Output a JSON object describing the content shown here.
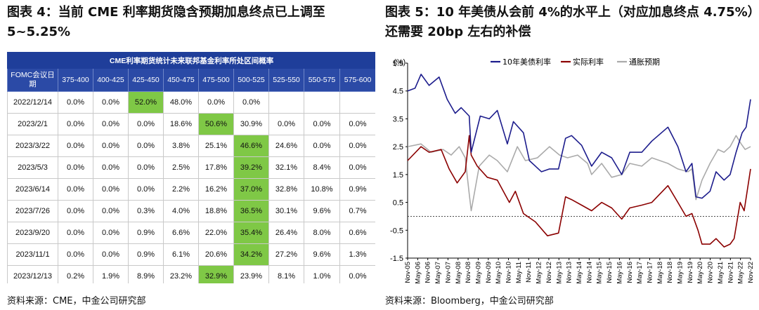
{
  "figure4": {
    "title": "图表 4：当前 CME 利率期货隐含预期加息终点已上调至 5~5.25%",
    "source": "资料来源：CME，中金公司研究部",
    "table": {
      "caption": "CME利率期货统计未来联邦基金利率所处区间概率",
      "columns": [
        "FOMC会议日期",
        "375-400",
        "400-425",
        "425-450",
        "450-475",
        "475-500",
        "500-525",
        "525-550",
        "550-575",
        "575-600"
      ],
      "rows": [
        {
          "date": "2022/12/14",
          "values": [
            "0.0%",
            "0.0%",
            "52.0%",
            "48.0%",
            "0.0%",
            "0.0%",
            "",
            "",
            ""
          ],
          "highlight": 2
        },
        {
          "date": "2023/2/1",
          "values": [
            "0.0%",
            "0.0%",
            "0.0%",
            "18.6%",
            "50.6%",
            "30.9%",
            "0.0%",
            "0.0%",
            "0.0%"
          ],
          "highlight": 4
        },
        {
          "date": "2023/3/22",
          "values": [
            "0.0%",
            "0.0%",
            "0.0%",
            "3.8%",
            "25.1%",
            "46.6%",
            "24.6%",
            "0.0%",
            "0.0%"
          ],
          "highlight": 5
        },
        {
          "date": "2023/5/3",
          "values": [
            "0.0%",
            "0.0%",
            "0.0%",
            "2.5%",
            "17.8%",
            "39.2%",
            "32.1%",
            "8.4%",
            "0.0%"
          ],
          "highlight": 5
        },
        {
          "date": "2023/6/14",
          "values": [
            "0.0%",
            "0.0%",
            "0.0%",
            "2.2%",
            "16.2%",
            "37.0%",
            "32.8%",
            "10.8%",
            "0.9%"
          ],
          "highlight": 5
        },
        {
          "date": "2023/7/26",
          "values": [
            "0.0%",
            "0.0%",
            "0.3%",
            "4.0%",
            "18.8%",
            "36.5%",
            "30.1%",
            "9.6%",
            "0.7%"
          ],
          "highlight": 5
        },
        {
          "date": "2023/9/20",
          "values": [
            "0.0%",
            "0.0%",
            "0.9%",
            "6.6%",
            "22.0%",
            "35.4%",
            "26.4%",
            "8.0%",
            "0.6%"
          ],
          "highlight": 5
        },
        {
          "date": "2023/11/1",
          "values": [
            "0.0%",
            "0.0%",
            "0.9%",
            "6.1%",
            "20.6%",
            "34.2%",
            "27.2%",
            "9.6%",
            "1.3%"
          ],
          "highlight": 5
        },
        {
          "date": "2023/12/13",
          "values": [
            "0.2%",
            "1.9%",
            "8.9%",
            "23.2%",
            "32.9%",
            "23.9%",
            "8.1%",
            "1.0%",
            "0.0%"
          ],
          "highlight": 4
        }
      ]
    }
  },
  "figure5": {
    "title": "图表 5：10 年美债从会前 4%的水平上（对应加息终点 4.75%）还需要 20bp 左右的补偿",
    "source": "资料来源：Bloomberg，中金公司研究部"
  },
  "chart_data": {
    "type": "line",
    "ylabel": "(%)",
    "ylim": [
      -1.5,
      5.5
    ],
    "yticks": [
      -1.5,
      -0.5,
      0.5,
      1.5,
      2.5,
      3.5,
      4.5,
      5.5
    ],
    "x_start": 2005.83,
    "x_end": 2022.92,
    "xticks": [
      "Nov-05",
      "May-06",
      "Nov-06",
      "May-07",
      "Nov-07",
      "May-08",
      "Nov-08",
      "May-09",
      "Nov-09",
      "May-10",
      "Nov-10",
      "May-11",
      "Nov-11",
      "May-12",
      "Nov-12",
      "May-13",
      "Nov-13",
      "May-14",
      "Nov-14",
      "May-15",
      "Nov-15",
      "May-16",
      "Nov-16",
      "May-17",
      "Nov-17",
      "May-18",
      "Nov-18",
      "May-19",
      "Nov-19",
      "May-20",
      "Nov-20",
      "May-21",
      "Nov-21",
      "May-22",
      "Nov-22"
    ],
    "series": [
      {
        "name": "10年美债利率",
        "color": "#1c1c8c",
        "x": [
          2005.83,
          2006.2,
          2006.5,
          2006.9,
          2007.4,
          2007.8,
          2008.2,
          2008.5,
          2008.9,
          2009.0,
          2009.45,
          2009.9,
          2010.3,
          2010.8,
          2011.1,
          2011.6,
          2011.9,
          2012.5,
          2012.9,
          2013.35,
          2013.7,
          2014.0,
          2014.5,
          2015.0,
          2015.5,
          2016.0,
          2016.5,
          2016.9,
          2017.5,
          2018.0,
          2018.8,
          2019.3,
          2019.7,
          2020.0,
          2020.2,
          2020.5,
          2020.9,
          2021.2,
          2021.6,
          2021.9,
          2022.2,
          2022.5,
          2022.7,
          2022.92
        ],
        "y": [
          4.5,
          4.6,
          5.1,
          4.7,
          5.0,
          4.2,
          3.7,
          3.9,
          3.6,
          2.3,
          3.6,
          3.5,
          3.8,
          2.6,
          3.4,
          3.0,
          2.0,
          1.6,
          1.7,
          1.7,
          2.8,
          2.9,
          2.55,
          1.8,
          2.3,
          2.1,
          1.5,
          2.3,
          2.3,
          2.7,
          3.2,
          2.5,
          1.6,
          1.9,
          0.7,
          0.65,
          0.9,
          1.6,
          1.3,
          1.5,
          2.3,
          3.0,
          3.2,
          4.2
        ]
      },
      {
        "name": "实际利率",
        "color": "#8b0000",
        "x": [
          2005.83,
          2006.5,
          2006.9,
          2007.5,
          2007.9,
          2008.3,
          2008.7,
          2008.9,
          2009.0,
          2009.3,
          2009.8,
          2010.3,
          2010.9,
          2011.2,
          2011.6,
          2012.2,
          2012.8,
          2013.35,
          2013.7,
          2014.0,
          2014.5,
          2015.0,
          2015.5,
          2016.0,
          2016.5,
          2016.9,
          2017.5,
          2018.0,
          2018.8,
          2019.3,
          2019.7,
          2020.0,
          2020.3,
          2020.5,
          2020.9,
          2021.2,
          2021.6,
          2021.9,
          2022.1,
          2022.4,
          2022.6,
          2022.92
        ],
        "y": [
          2.0,
          2.5,
          2.3,
          2.4,
          1.7,
          1.2,
          1.6,
          2.9,
          2.2,
          1.8,
          1.4,
          1.3,
          0.5,
          0.9,
          0.1,
          -0.2,
          -0.7,
          -0.6,
          0.7,
          0.6,
          0.4,
          0.2,
          0.5,
          0.3,
          -0.1,
          0.3,
          0.4,
          0.5,
          1.1,
          0.5,
          0.0,
          0.1,
          -0.5,
          -1.0,
          -1.0,
          -0.8,
          -1.1,
          -1.0,
          -0.8,
          0.5,
          0.2,
          1.7
        ]
      },
      {
        "name": "通胀预期",
        "color": "#aaaaaa",
        "x": [
          2005.83,
          2006.5,
          2007.0,
          2007.6,
          2008.0,
          2008.4,
          2008.7,
          2008.9,
          2009.0,
          2009.4,
          2009.9,
          2010.3,
          2010.8,
          2011.3,
          2011.7,
          2012.3,
          2012.9,
          2013.4,
          2013.8,
          2014.3,
          2014.8,
          2015.0,
          2015.5,
          2016.0,
          2016.5,
          2016.9,
          2017.5,
          2018.0,
          2018.8,
          2019.3,
          2019.8,
          2020.0,
          2020.2,
          2020.5,
          2020.9,
          2021.3,
          2021.6,
          2021.9,
          2022.2,
          2022.45,
          2022.65,
          2022.92
        ],
        "y": [
          2.5,
          2.6,
          2.3,
          2.4,
          2.2,
          2.5,
          2.1,
          0.8,
          0.2,
          1.8,
          2.2,
          2.0,
          1.6,
          2.5,
          2.0,
          2.1,
          2.5,
          2.2,
          2.1,
          2.2,
          1.9,
          1.5,
          1.9,
          1.4,
          1.5,
          1.9,
          1.8,
          2.1,
          1.9,
          1.7,
          1.6,
          1.7,
          0.6,
          1.3,
          1.9,
          2.4,
          2.3,
          2.5,
          2.9,
          2.6,
          2.4,
          2.5
        ]
      }
    ]
  }
}
